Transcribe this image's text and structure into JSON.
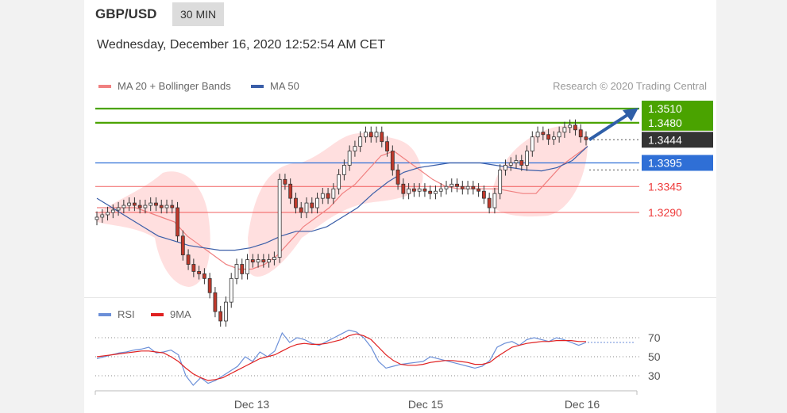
{
  "header": {
    "pair": "GBP/USD",
    "timeframe": "30 MIN"
  },
  "datetime": "Wednesday, December 16, 2020 12:52:54 AM CET",
  "legend": {
    "ma20_label": "MA 20 + Bollinger Bands",
    "ma50_label": "MA 50",
    "rsi_label": "RSI",
    "rsi_ma_label": "9MA"
  },
  "credit": "Research © 2020 Trading Central",
  "colors": {
    "resistance": "#4aa300",
    "pivot": "#2f6fd6",
    "support": "#ee3b3b",
    "current": "#333333",
    "candle_up": "#2e8b2e",
    "candle_down": "#c0392b",
    "bollinger": "#ffd4d4",
    "ma20": "#f08080",
    "ma50": "#3a5ea8",
    "rsi": "#6b8fd8",
    "rsi_ma": "#e02020",
    "arrow": "#2f5fa8"
  },
  "chart_data": [
    {
      "type": "candlestick",
      "title": "",
      "ylim": [
        1.302,
        1.358
      ],
      "x_ticks": [
        "Dec 13",
        "Dec 15",
        "Dec 16"
      ],
      "levels": [
        {
          "label": "1.3510",
          "value": 1.351,
          "kind": "resistance"
        },
        {
          "label": "1.3480",
          "value": 1.348,
          "kind": "resistance"
        },
        {
          "label": "1.3444",
          "value": 1.3444,
          "kind": "current"
        },
        {
          "label": "1.3395",
          "value": 1.3395,
          "kind": "pivot"
        },
        {
          "label": "1.3345",
          "value": 1.3345,
          "kind": "support"
        },
        {
          "label": "1.3290",
          "value": 1.329,
          "kind": "support"
        }
      ],
      "close_series": [
        1.328,
        1.3285,
        1.329,
        1.3295,
        1.33,
        1.3305,
        1.331,
        1.3305,
        1.33,
        1.3305,
        1.331,
        1.3305,
        1.33,
        1.3305,
        1.33,
        1.324,
        1.32,
        1.318,
        1.3165,
        1.316,
        1.315,
        1.312,
        1.308,
        1.306,
        1.31,
        1.315,
        1.318,
        1.316,
        1.319,
        1.3185,
        1.319,
        1.3185,
        1.319,
        1.3195,
        1.336,
        1.335,
        1.332,
        1.33,
        1.329,
        1.331,
        1.33,
        1.332,
        1.333,
        1.332,
        1.334,
        1.337,
        1.339,
        1.342,
        1.343,
        1.345,
        1.346,
        1.345,
        1.346,
        1.344,
        1.342,
        1.338,
        1.335,
        1.333,
        1.334,
        1.3335,
        1.334,
        1.3335,
        1.333,
        1.3335,
        1.334,
        1.3345,
        1.335,
        1.3345,
        1.334,
        1.3345,
        1.334,
        1.3335,
        1.332,
        1.33,
        1.333,
        1.338,
        1.339,
        1.3395,
        1.34,
        1.339,
        1.342,
        1.345,
        1.346,
        1.3455,
        1.3445,
        1.345,
        1.346,
        1.347,
        1.3475,
        1.3465,
        1.345,
        1.3444
      ],
      "ma20": [
        1.33,
        1.33,
        1.33,
        1.33,
        1.329,
        1.328,
        1.327,
        1.324,
        1.322,
        1.32,
        1.318,
        1.317,
        1.317,
        1.318,
        1.32,
        1.323,
        1.326,
        1.328,
        1.33,
        1.333,
        1.335,
        1.338,
        1.341,
        1.342,
        1.34,
        1.338,
        1.336,
        1.3345,
        1.334,
        1.334,
        1.334,
        1.334,
        1.3335,
        1.333,
        1.333,
        1.336,
        1.339,
        1.341,
        1.343
      ],
      "ma50": [
        1.332,
        1.33,
        1.328,
        1.326,
        1.324,
        1.323,
        1.322,
        1.3215,
        1.321,
        1.321,
        1.3215,
        1.3225,
        1.324,
        1.325,
        1.325,
        1.326,
        1.328,
        1.33,
        1.333,
        1.3355,
        1.3375,
        1.3385,
        1.339,
        1.3395,
        1.3395,
        1.3395,
        1.339,
        1.3385,
        1.338,
        1.3378,
        1.3385,
        1.34,
        1.343
      ],
      "arrow_target": 1.351
    },
    {
      "type": "line",
      "title": "",
      "ylim": [
        20,
        85
      ],
      "y_ticks": [
        70,
        50,
        30
      ],
      "series": [
        {
          "name": "RSI",
          "values": [
            48,
            50,
            52,
            54,
            55,
            57,
            58,
            60,
            54,
            55,
            57,
            52,
            30,
            20,
            28,
            22,
            25,
            30,
            35,
            40,
            50,
            45,
            55,
            50,
            56,
            75,
            65,
            70,
            68,
            64,
            62,
            66,
            70,
            74,
            78,
            76,
            70,
            60,
            45,
            38,
            40,
            42,
            43,
            44,
            45,
            50,
            48,
            46,
            44,
            42,
            40,
            38,
            40,
            46,
            60,
            64,
            66,
            62,
            68,
            70,
            68,
            66,
            70,
            68,
            65,
            62,
            65
          ]
        },
        {
          "name": "9MA",
          "values": [
            50,
            51,
            52,
            53,
            54,
            55,
            56,
            56,
            55,
            54,
            50,
            45,
            38,
            32,
            28,
            25,
            26,
            28,
            32,
            36,
            40,
            44,
            48,
            50,
            52,
            56,
            60,
            63,
            64,
            63,
            63,
            64,
            66,
            68,
            72,
            74,
            72,
            68,
            60,
            52,
            46,
            42,
            41,
            41,
            42,
            44,
            45,
            46,
            46,
            45,
            44,
            42,
            42,
            44,
            50,
            55,
            60,
            62,
            64,
            65,
            66,
            66,
            67,
            67,
            67,
            66,
            66
          ]
        }
      ]
    }
  ]
}
